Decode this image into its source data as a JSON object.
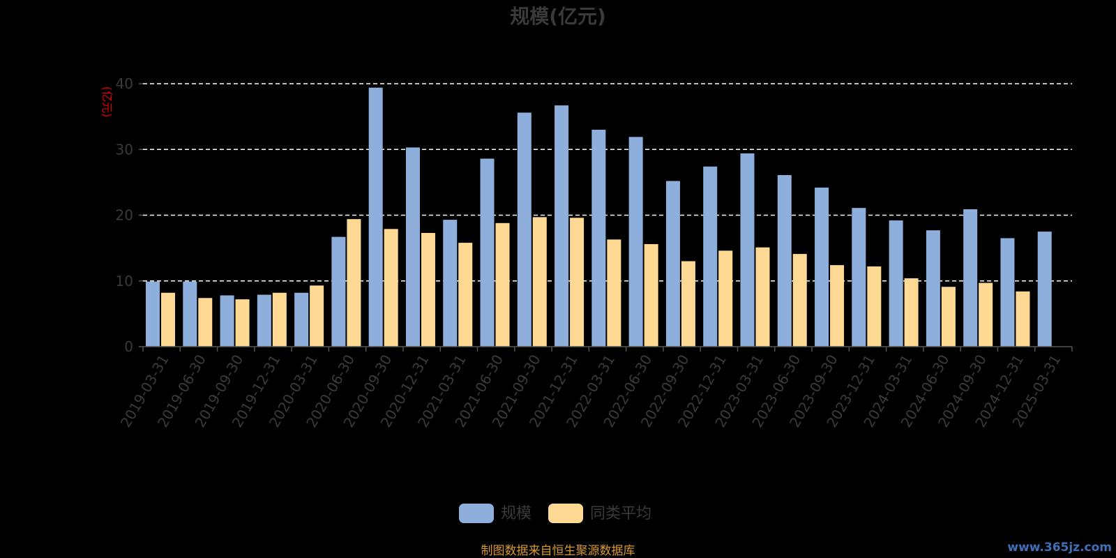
{
  "chart_data": {
    "type": "bar",
    "title": "规模(亿元)",
    "unit_label": "(亿元)",
    "categories": [
      "2019-03-31",
      "2019-06-30",
      "2019-09-30",
      "2019-12-31",
      "2020-03-31",
      "2020-06-30",
      "2020-09-30",
      "2020-12-31",
      "2021-03-31",
      "2021-06-30",
      "2021-09-30",
      "2021-12-31",
      "2022-03-31",
      "2022-06-30",
      "2022-09-30",
      "2022-12-31",
      "2023-03-31",
      "2023-06-30",
      "2023-09-30",
      "2023-12-31",
      "2024-03-31",
      "2024-06-30",
      "2024-09-30",
      "2024-12-31",
      "2025-03-31"
    ],
    "series": [
      {
        "name": "规模",
        "color": "#8eaedc",
        "values": [
          9.9,
          9.9,
          7.8,
          7.9,
          8.2,
          16.7,
          39.4,
          30.3,
          19.3,
          28.6,
          35.6,
          36.7,
          33.0,
          31.9,
          25.2,
          27.4,
          29.4,
          26.1,
          24.2,
          21.1,
          19.2,
          17.7,
          20.9,
          16.5,
          17.5
        ]
      },
      {
        "name": "同类平均",
        "color": "#fdd994",
        "values": [
          8.2,
          7.4,
          7.2,
          8.2,
          9.3,
          19.4,
          17.9,
          17.3,
          15.8,
          18.8,
          19.7,
          19.6,
          16.3,
          15.6,
          13.0,
          14.6,
          15.1,
          14.1,
          12.4,
          12.2,
          10.4,
          9.1,
          9.7,
          8.4,
          null
        ]
      }
    ],
    "yticks": [
      0,
      10,
      20,
      30,
      40
    ],
    "ylim": [
      0,
      40
    ],
    "grid": true,
    "legend_position": "bottom-center"
  },
  "footer": {
    "source_text": "制图数据来自恒生聚源数据库",
    "watermark": "www.365jz.com"
  }
}
